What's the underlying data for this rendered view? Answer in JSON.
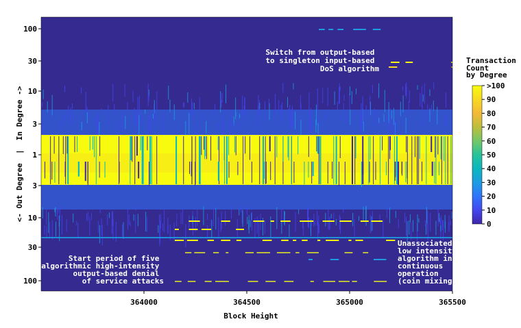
{
  "chart_data": {
    "type": "heatmap",
    "xlabel": "Block Height",
    "ylabel": "<- Out Degree  |  In Degree ->",
    "x_range": [
      363500,
      365500
    ],
    "x_ticks": [
      "364000",
      "364500",
      "365000",
      "365500"
    ],
    "y_scale": "symmetric-log (in degree above center, out degree below)",
    "y_ticks_in": [
      "100",
      "30",
      "10",
      "3",
      "1"
    ],
    "y_ticks_out": [
      "3",
      "10",
      "30",
      "100"
    ],
    "colorbar": {
      "title": [
        "Transaction",
        "Count",
        "by Degree"
      ],
      "ticks": [
        ">100",
        "90",
        "80",
        "70",
        "60",
        "50",
        "40",
        "30",
        "20",
        "10",
        "0"
      ],
      "range": [
        0,
        100
      ],
      "placement": "right"
    },
    "annotations": [
      {
        "lines": [
          "Switch from output-based",
          "to singleton input-based",
          "DoS algorithm"
        ]
      },
      {
        "lines": [
          "Start period of five",
          "algorithmic high-intensity",
          "output-based denial",
          "of service attacks"
        ]
      },
      {
        "lines": [
          "Unassociated",
          "low intensity",
          "algorithm in",
          "continuous",
          "operation",
          "(coin mixing)"
        ]
      }
    ],
    "bands": [
      {
        "side": "in",
        "degree_range": [
          1,
          2
        ],
        "level": "high (>100)"
      },
      {
        "side": "out",
        "degree_range": [
          2,
          3
        ],
        "level": "high (>100)"
      },
      {
        "side": "in",
        "degree_range": [
          3,
          5
        ],
        "level": "medium-low (10-30)"
      },
      {
        "side": "out",
        "degree_range": [
          3,
          5
        ],
        "level": "medium-low (10-30)"
      },
      {
        "side": "in",
        "degree": 30,
        "x_range": [
          365200,
          365500
        ],
        "level": "high (>100)"
      },
      {
        "side": "out",
        "degree": 20,
        "x_range": [
          364150,
          365200
        ],
        "level": "high (>100)",
        "pattern": "dashed"
      },
      {
        "side": "out",
        "degree": 100,
        "x_range": [
          364150,
          365150
        ],
        "level": "medium-high",
        "pattern": "dashed"
      },
      {
        "side": "out",
        "degree": 22,
        "x_range": [
          363500,
          365500
        ],
        "level": "low (10-20)"
      }
    ]
  }
}
